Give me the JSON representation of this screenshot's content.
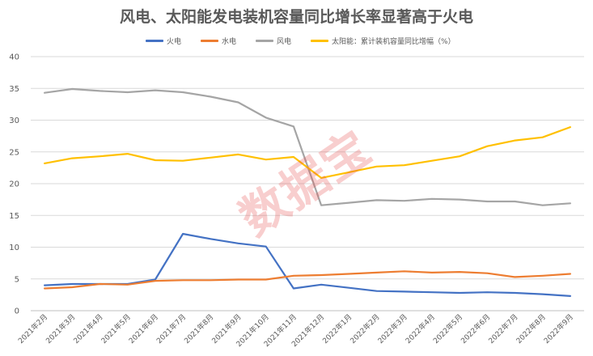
{
  "chart_data": {
    "type": "line",
    "title": "风电、太阳能发电装机容量同比增长率显著高于火电",
    "xlabel": "",
    "ylabel": "",
    "ylim": [
      0,
      40
    ],
    "yticks": [
      0,
      5,
      10,
      15,
      20,
      25,
      30,
      35,
      40
    ],
    "grid": true,
    "legend_position": "top",
    "categories": [
      "2021年2月",
      "2021年3月",
      "2021年4月",
      "2021年5月",
      "2021年6月",
      "2021年7月",
      "2021年8月",
      "2021年9月",
      "2021年10月",
      "2021年11月",
      "2021年12月",
      "2022年1月",
      "2022年2月",
      "2022年3月",
      "2022年4月",
      "2022年5月",
      "2022年6月",
      "2022年7月",
      "2022年8月",
      "2022年9月"
    ],
    "series": [
      {
        "name": "火电",
        "color": "#4472C4",
        "values": [
          4.0,
          4.2,
          4.2,
          4.2,
          4.9,
          12.1,
          11.3,
          10.6,
          10.1,
          3.5,
          4.1,
          3.6,
          3.1,
          3.0,
          2.9,
          2.8,
          2.9,
          2.8,
          2.6,
          2.3
        ]
      },
      {
        "name": "水电",
        "color": "#ED7D31",
        "values": [
          3.5,
          3.7,
          4.2,
          4.1,
          4.7,
          4.8,
          4.8,
          4.9,
          4.9,
          5.5,
          5.6,
          5.8,
          6.0,
          6.2,
          6.0,
          6.1,
          5.9,
          5.3,
          5.5,
          5.8
        ]
      },
      {
        "name": "风电",
        "color": "#A5A5A5",
        "values": [
          34.3,
          34.9,
          34.6,
          34.4,
          34.7,
          34.4,
          33.7,
          32.8,
          30.4,
          29.0,
          16.6,
          17.0,
          17.4,
          17.3,
          17.6,
          17.5,
          17.2,
          17.2,
          16.6,
          16.9
        ]
      },
      {
        "name": "太阳能：累计装机容量同比增幅（%）",
        "color": "#FFC000",
        "values": [
          23.2,
          24.0,
          24.3,
          24.7,
          23.7,
          23.6,
          24.1,
          24.6,
          23.8,
          24.2,
          20.9,
          21.8,
          22.7,
          22.9,
          23.6,
          24.3,
          25.9,
          26.8,
          27.3,
          28.9
        ]
      }
    ]
  },
  "watermark": "数据宝"
}
